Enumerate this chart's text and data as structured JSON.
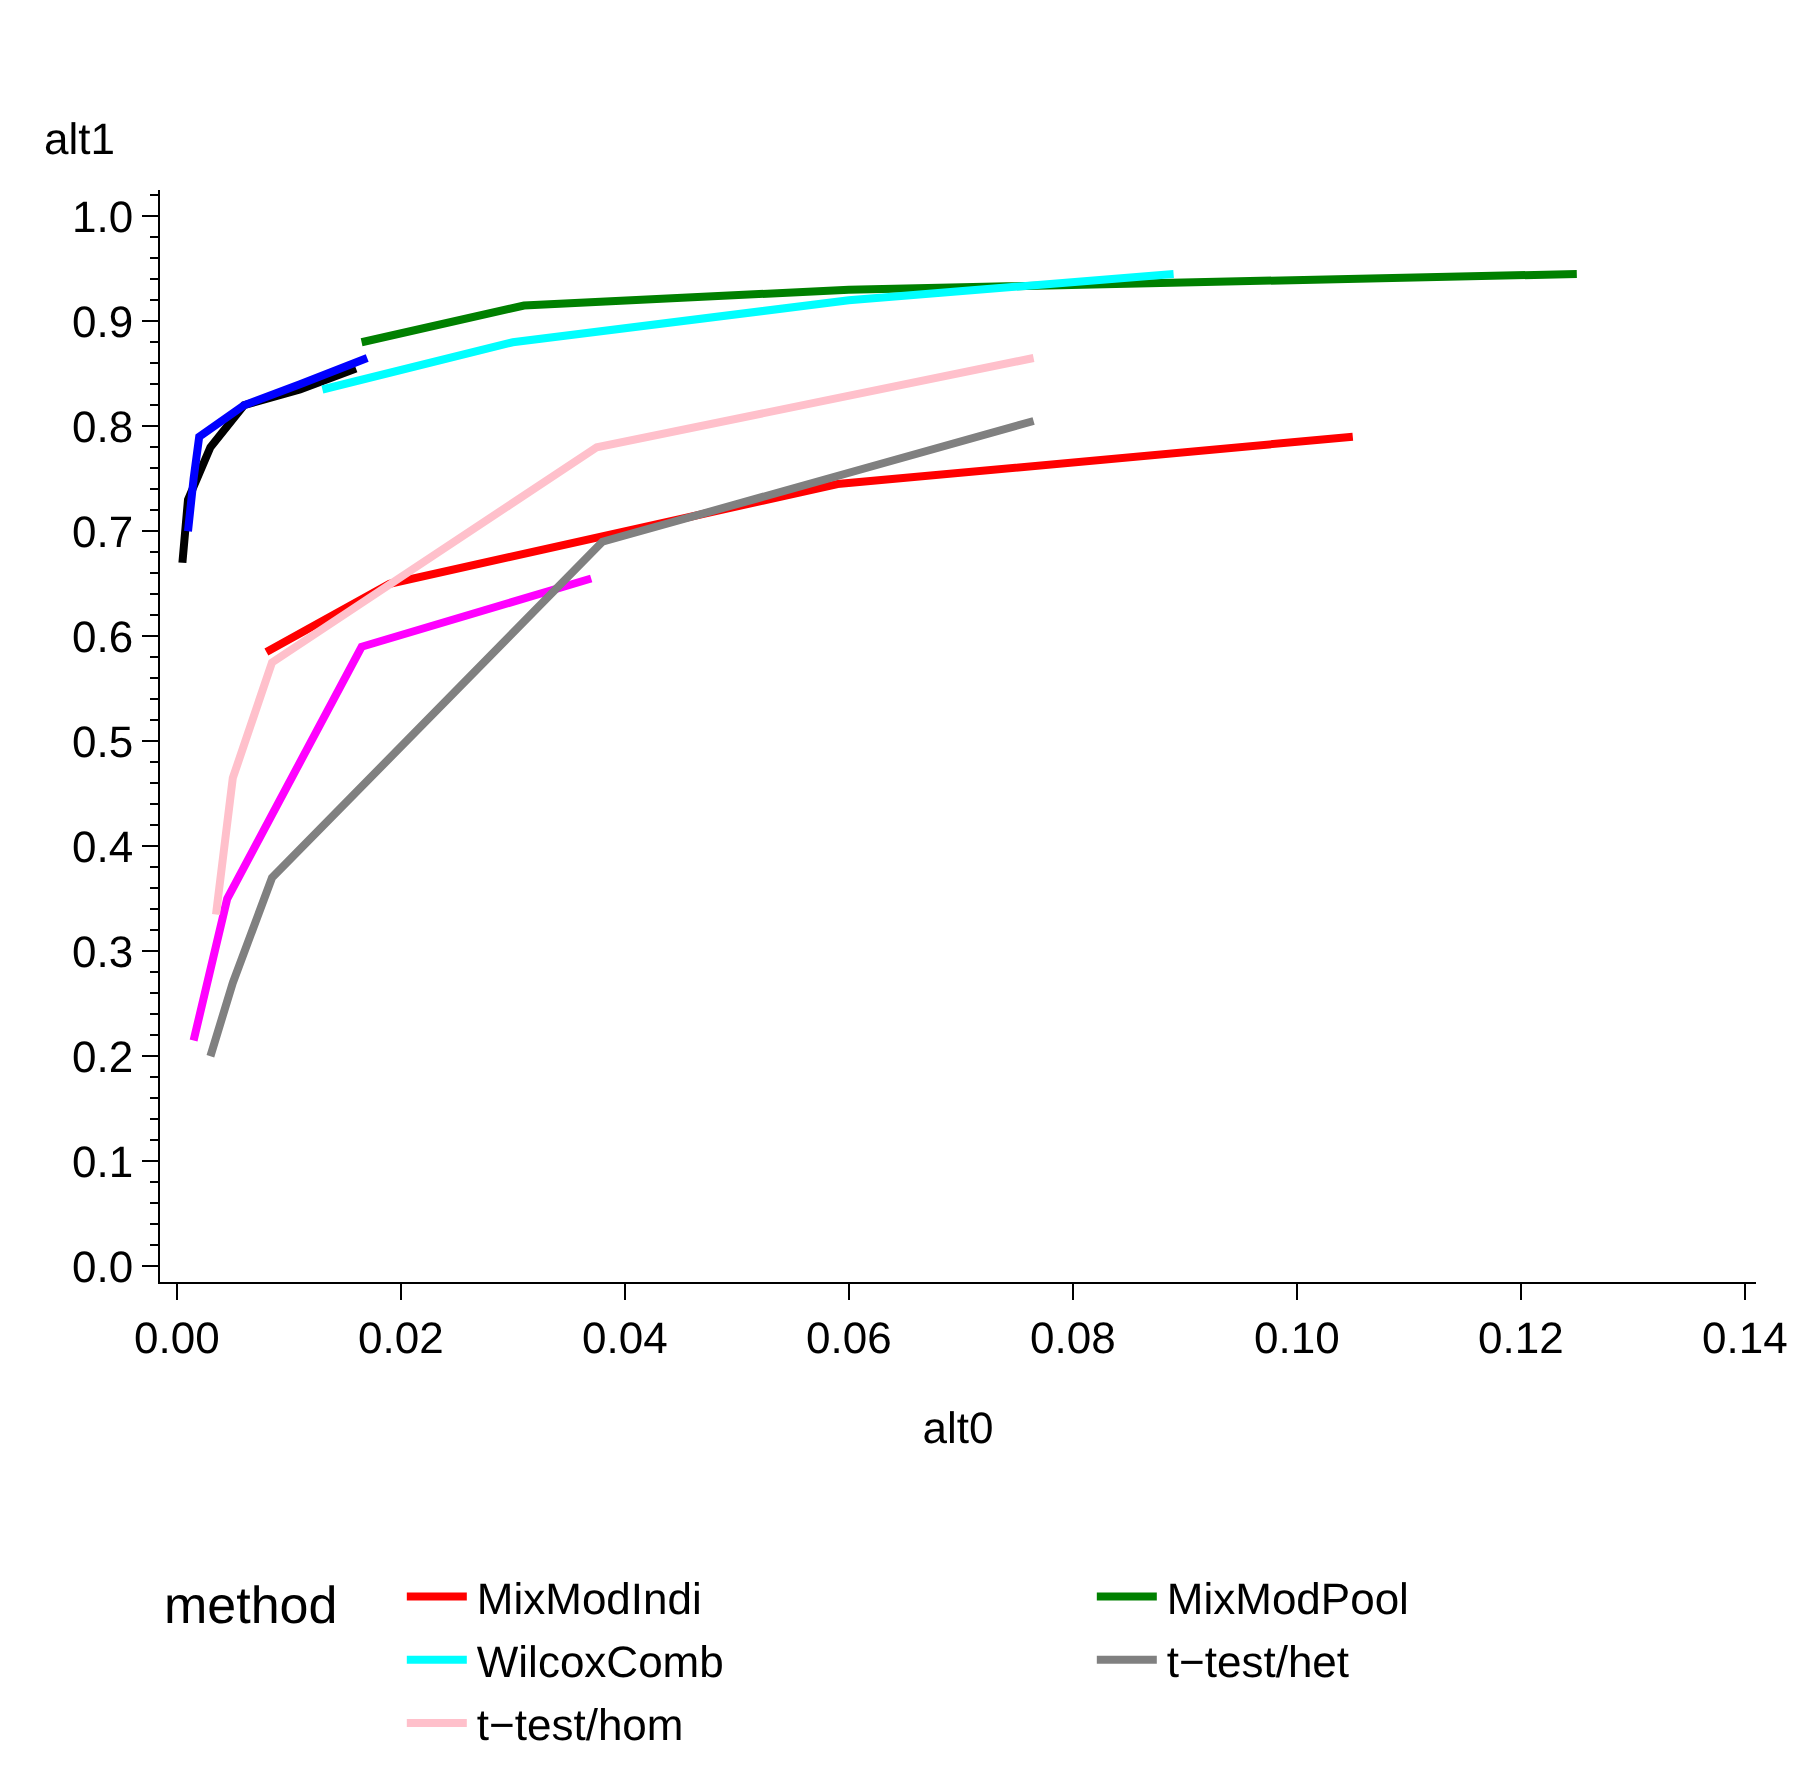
{
  "chart_data": {
    "type": "line",
    "xlabel": "alt0",
    "ylabel": "alt1",
    "legend_title": "method",
    "legend": "bottom",
    "marker": "none",
    "line_style": "solid",
    "xlim": [
      -0.0015,
      0.141
    ],
    "xticks": [
      {
        "value": 0,
        "label": "0.00"
      },
      {
        "value": 0.02,
        "label": "0.02"
      },
      {
        "value": 0.04,
        "label": "0.04"
      },
      {
        "value": 0.06,
        "label": "0.06"
      },
      {
        "value": 0.08,
        "label": "0.08"
      },
      {
        "value": 0.1,
        "label": "0.10"
      },
      {
        "value": 0.12,
        "label": "0.12"
      },
      {
        "value": 0.14,
        "label": "0.14"
      }
    ],
    "ylim": [
      -0.015,
      1.025
    ],
    "yticks": [
      {
        "value": 0,
        "label": "0.0"
      },
      {
        "value": 0.1,
        "label": "0.1"
      },
      {
        "value": 0.2,
        "label": "0.2"
      },
      {
        "value": 0.3,
        "label": "0.3"
      },
      {
        "value": 0.4,
        "label": "0.4"
      },
      {
        "value": 0.5,
        "label": "0.5"
      },
      {
        "value": 0.6,
        "label": "0.6"
      },
      {
        "value": 0.7,
        "label": "0.7"
      },
      {
        "value": 0.8,
        "label": "0.8"
      },
      {
        "value": 0.9,
        "label": "0.9"
      },
      {
        "value": 1,
        "label": "1.0"
      }
    ],
    "series": [
      {
        "color": "#000000",
        "x": [
          0.0005,
          0.001,
          0.003,
          0.006,
          0.011,
          0.016
        ],
        "values": [
          0.67,
          0.73,
          0.78,
          0.82,
          0.835,
          0.855
        ]
      },
      {
        "name": "MixModIndi",
        "color": "#ff0000",
        "x": [
          0.008,
          0.019,
          0.059,
          0.105
        ],
        "values": [
          0.585,
          0.65,
          0.745,
          0.79
        ]
      },
      {
        "name": "MixModPool",
        "color": "#008000",
        "x": [
          0.0165,
          0.031,
          0.06,
          0.125
        ],
        "values": [
          0.88,
          0.915,
          0.93,
          0.945
        ]
      },
      {
        "color": "#0000ff",
        "x": [
          0.001,
          0.0015,
          0.002,
          0.006,
          0.011,
          0.017
        ],
        "values": [
          0.7,
          0.75,
          0.79,
          0.82,
          0.84,
          0.865
        ]
      },
      {
        "name": "WilcoxComb",
        "color": "#00ffff",
        "x": [
          0.013,
          0.03,
          0.06,
          0.089
        ],
        "values": [
          0.835,
          0.88,
          0.92,
          0.945
        ]
      },
      {
        "color": "#ff00ff",
        "x": [
          0.0015,
          0.0045,
          0.0165,
          0.037
        ],
        "values": [
          0.215,
          0.35,
          0.59,
          0.655
        ]
      },
      {
        "name": "t−test/het",
        "color": "#808080",
        "x": [
          0.003,
          0.005,
          0.0085,
          0.038,
          0.0765
        ],
        "values": [
          0.2,
          0.27,
          0.37,
          0.69,
          0.805
        ]
      },
      {
        "name": "t−test/hom",
        "color": "#ffc0cb",
        "x": [
          0.0035,
          0.005,
          0.0085,
          0.0375,
          0.0765
        ],
        "values": [
          0.335,
          0.465,
          0.575,
          0.78,
          0.865
        ]
      }
    ]
  }
}
